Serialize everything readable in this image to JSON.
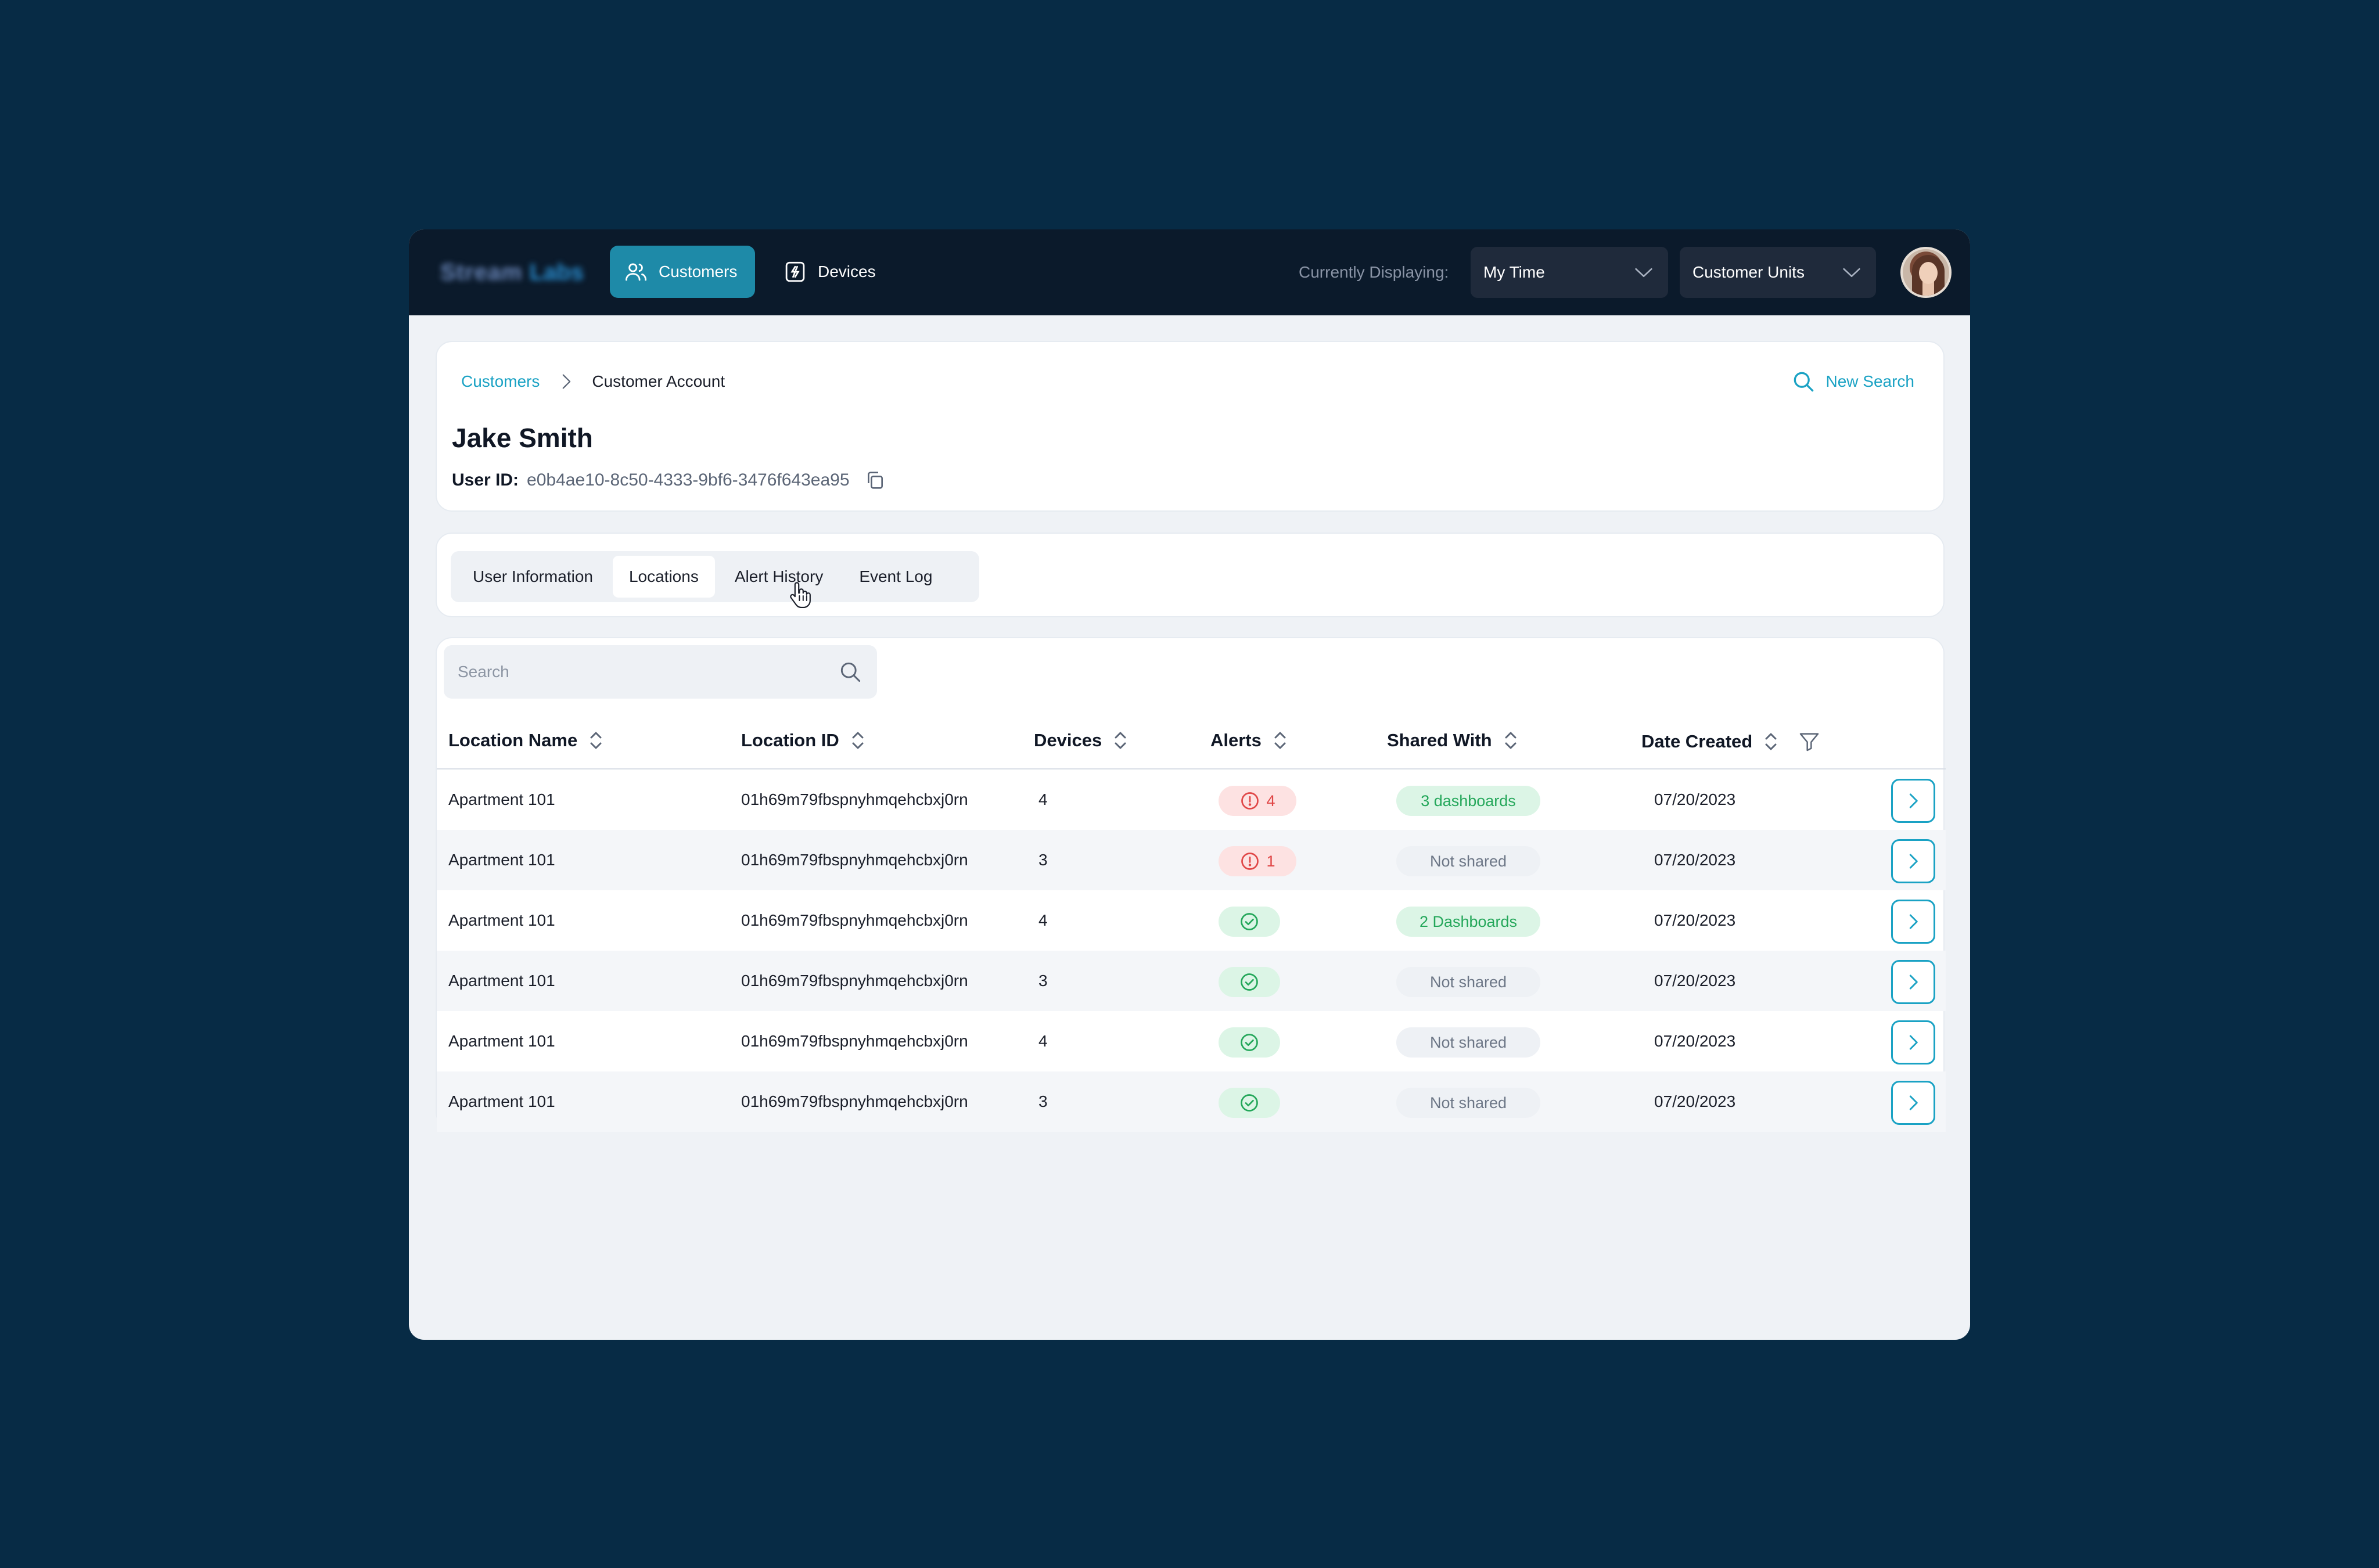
{
  "topbar": {
    "logo_text": "Stream",
    "logo_text_accent": "Labs",
    "nav": [
      {
        "label": "Customers",
        "icon": "users-icon",
        "active": true
      },
      {
        "label": "Devices",
        "icon": "device-icon",
        "active": false
      }
    ],
    "displaying_label": "Currently Displaying:",
    "time_select": "My Time",
    "units_select": "Customer Units"
  },
  "breadcrumb": {
    "root": "Customers",
    "current": "Customer Account"
  },
  "new_search_label": "New Search",
  "user": {
    "name": "Jake Smith",
    "id_label": "User ID:",
    "id_value": "e0b4ae10-8c50-4333-9bf6-3476f643ea95"
  },
  "tabs": [
    {
      "label": "User Information",
      "selected": false
    },
    {
      "label": "Locations",
      "selected": true
    },
    {
      "label": "Alert History",
      "selected": false
    },
    {
      "label": "Event Log",
      "selected": false
    }
  ],
  "search": {
    "placeholder": "Search",
    "value": ""
  },
  "table": {
    "columns": [
      "Location Name",
      "Location ID",
      "Devices",
      "Alerts",
      "Shared With",
      "Date Created"
    ],
    "rows": [
      {
        "name": "Apartment 101",
        "id": "01h69m79fbspnyhmqehcbxj0rn",
        "devices": "4",
        "alerts": "4",
        "alert_status": "alert",
        "shared": "3 dashboards",
        "shared_status": "shared",
        "date": "07/20/2023"
      },
      {
        "name": "Apartment 101",
        "id": "01h69m79fbspnyhmqehcbxj0rn",
        "devices": "3",
        "alerts": "1",
        "alert_status": "alert",
        "shared": "Not shared",
        "shared_status": "not-shared",
        "date": "07/20/2023"
      },
      {
        "name": "Apartment 101",
        "id": "01h69m79fbspnyhmqehcbxj0rn",
        "devices": "4",
        "alerts": "",
        "alert_status": "ok",
        "shared": "2 Dashboards",
        "shared_status": "shared",
        "date": "07/20/2023"
      },
      {
        "name": "Apartment 101",
        "id": "01h69m79fbspnyhmqehcbxj0rn",
        "devices": "3",
        "alerts": "",
        "alert_status": "ok",
        "shared": "Not shared",
        "shared_status": "not-shared",
        "date": "07/20/2023"
      },
      {
        "name": "Apartment 101",
        "id": "01h69m79fbspnyhmqehcbxj0rn",
        "devices": "4",
        "alerts": "",
        "alert_status": "ok",
        "shared": "Not shared",
        "shared_status": "not-shared",
        "date": "07/20/2023"
      },
      {
        "name": "Apartment 101",
        "id": "01h69m79fbspnyhmqehcbxj0rn",
        "devices": "3",
        "alerts": "",
        "alert_status": "ok",
        "shared": "Not shared",
        "shared_status": "not-shared",
        "date": "07/20/2023"
      }
    ]
  },
  "colors": {
    "page_bg": "#072b45",
    "topbar_bg": "#0b1a2b",
    "accent": "#1aa2c4",
    "active_nav": "#1e8aa8",
    "alert_red": "#e04747",
    "ok_green": "#24a75a"
  }
}
